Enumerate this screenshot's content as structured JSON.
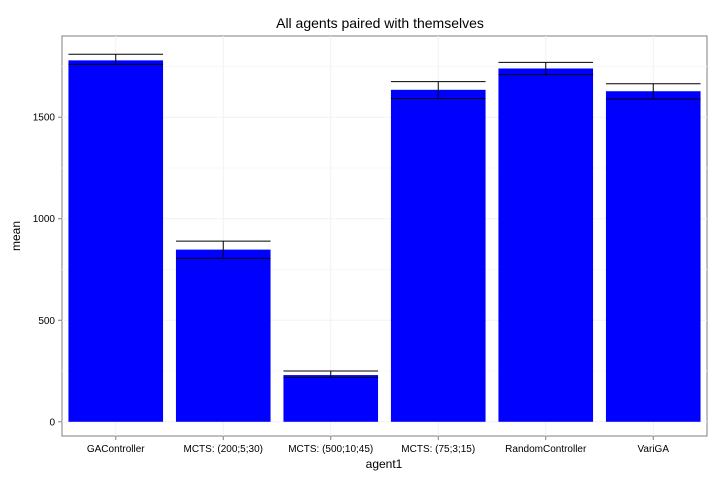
{
  "chart_data": {
    "type": "bar",
    "title": "All agents paired with themselves",
    "xlabel": "agent1",
    "ylabel": "mean",
    "categories": [
      "GAController",
      "MCTS: (200;5;30)",
      "MCTS: (500;10;45)",
      "MCTS: (75;3;15)",
      "RandomController",
      "VariGA"
    ],
    "values": [
      1780,
      848,
      230,
      1635,
      1740,
      1628
    ],
    "error_low": [
      1760,
      805,
      218,
      1592,
      1710,
      1590
    ],
    "error_high": [
      1810,
      890,
      250,
      1675,
      1770,
      1665
    ],
    "yticks": [
      0,
      500,
      1000,
      1500
    ],
    "ylim": [
      -70,
      1900
    ],
    "bar_color": "#0000ff",
    "grid": true
  }
}
